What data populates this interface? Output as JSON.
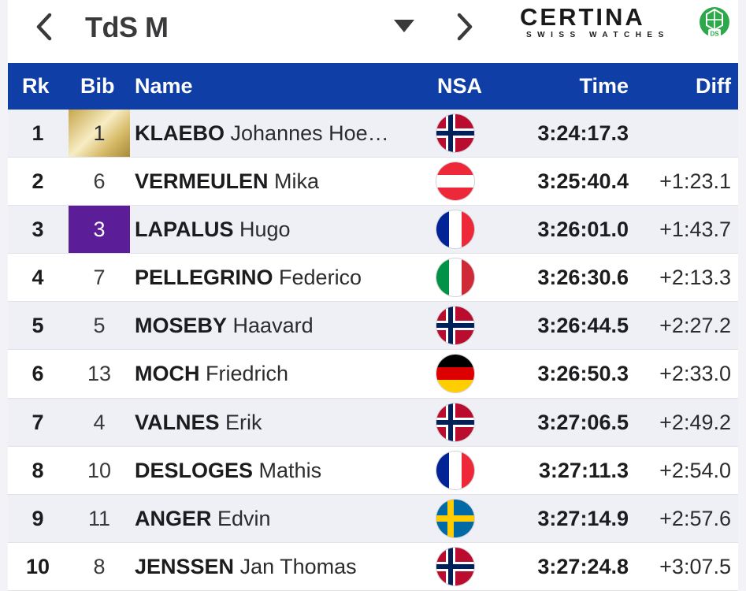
{
  "nav": {
    "title": "TdS M",
    "logo_word": "CERTINA",
    "logo_sub": "SWISS WATCHES",
    "logo_mark": "DS"
  },
  "table": {
    "columns": {
      "rk": "Rk",
      "bib": "Bib",
      "name": "Name",
      "nsa": "NSA",
      "time": "Time",
      "diff": "Diff"
    },
    "rows": [
      {
        "rk": "1",
        "bib": "1",
        "bib_style": "gold",
        "surname": "KLAEBO",
        "given": "Johannes Hoe…",
        "nsa_flag": "norway",
        "time": "3:24:17.3",
        "diff": ""
      },
      {
        "rk": "2",
        "bib": "6",
        "bib_style": "",
        "surname": "VERMEULEN",
        "given": "Mika",
        "nsa_flag": "austria",
        "time": "3:25:40.4",
        "diff": "+1:23.1"
      },
      {
        "rk": "3",
        "bib": "3",
        "bib_style": "purple",
        "surname": "LAPALUS",
        "given": "Hugo",
        "nsa_flag": "france",
        "time": "3:26:01.0",
        "diff": "+1:43.7"
      },
      {
        "rk": "4",
        "bib": "7",
        "bib_style": "",
        "surname": "PELLEGRINO",
        "given": "Federico",
        "nsa_flag": "italy",
        "time": "3:26:30.6",
        "diff": "+2:13.3"
      },
      {
        "rk": "5",
        "bib": "5",
        "bib_style": "",
        "surname": "MOSEBY",
        "given": "Haavard",
        "nsa_flag": "norway",
        "time": "3:26:44.5",
        "diff": "+2:27.2"
      },
      {
        "rk": "6",
        "bib": "13",
        "bib_style": "",
        "surname": "MOCH",
        "given": "Friedrich",
        "nsa_flag": "germany",
        "time": "3:26:50.3",
        "diff": "+2:33.0"
      },
      {
        "rk": "7",
        "bib": "4",
        "bib_style": "",
        "surname": "VALNES",
        "given": "Erik",
        "nsa_flag": "norway",
        "time": "3:27:06.5",
        "diff": "+2:49.2"
      },
      {
        "rk": "8",
        "bib": "10",
        "bib_style": "",
        "surname": "DESLOGES",
        "given": "Mathis",
        "nsa_flag": "france",
        "time": "3:27:11.3",
        "diff": "+2:54.0"
      },
      {
        "rk": "9",
        "bib": "11",
        "bib_style": "",
        "surname": "ANGER",
        "given": "Edvin",
        "nsa_flag": "sweden",
        "time": "3:27:14.9",
        "diff": "+2:57.6"
      },
      {
        "rk": "10",
        "bib": "8",
        "bib_style": "",
        "surname": "JENSSEN",
        "given": "Jan Thomas",
        "nsa_flag": "norway",
        "time": "3:27:24.8",
        "diff": "+3:07.5"
      }
    ]
  },
  "colors": {
    "header_bg": "#0f3fa6",
    "row_alt_bg": "#eef0f6",
    "bib_leader": "#c7a64a",
    "bib_purple": "#5b1e98",
    "logo_green": "#2ea84a"
  },
  "icons": {
    "back": "chevron-left-icon",
    "menu": "caret-down-icon",
    "next": "chevron-right-icon"
  }
}
